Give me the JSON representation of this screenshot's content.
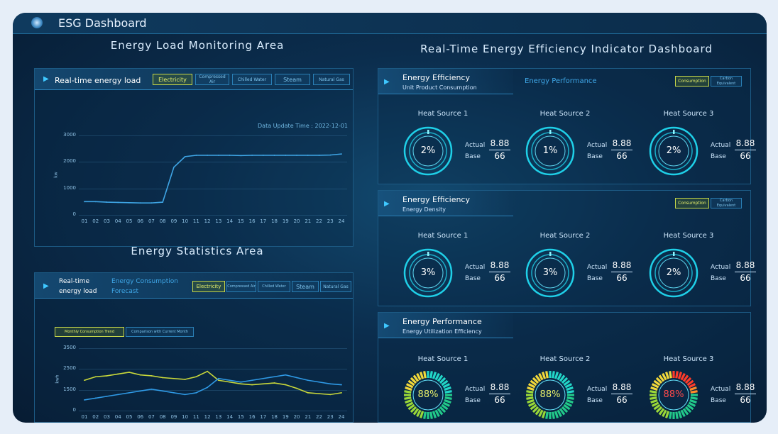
{
  "app": {
    "title": "ESG Dashboard"
  },
  "left": {
    "section1_title": "Energy Load Monitoring Area",
    "load": {
      "title": "Real-time energy load",
      "tabs": [
        "Electricity",
        "Compressed Air",
        "Chilled Water",
        "Steam",
        "Natural Gas"
      ],
      "active_tab": 0,
      "update": "Data Update Time : 2022-12-01",
      "chart": {
        "type": "line",
        "xlabel": "",
        "ylabel": "kw",
        "yticks": [
          "3000",
          "2000",
          "1000",
          "0"
        ],
        "xticks": [
          "01",
          "02",
          "03",
          "04",
          "05",
          "06",
          "07",
          "08",
          "09",
          "10",
          "11",
          "12",
          "13",
          "14",
          "15",
          "16",
          "17",
          "18",
          "19",
          "20",
          "21",
          "22",
          "23",
          "24"
        ]
      }
    },
    "section2_title": "Energy Statistics Area",
    "stats": {
      "title_line1": "Real-time",
      "title_line2": "energy load",
      "link_line1": "Energy Consumption",
      "link_line2": "Forecast",
      "tabs": [
        "Electricity",
        "Compressed Air",
        "Chilled Water",
        "Steam",
        "Natural Gas"
      ],
      "subtabs": [
        "Monthly Consumption Trend",
        "Comparison with Current Month"
      ],
      "chart": {
        "type": "line",
        "ylabel": "kwh",
        "yticks": [
          "3500",
          "2500",
          "1500",
          "0"
        ],
        "xticks": [
          "01",
          "02",
          "03",
          "04",
          "05",
          "06",
          "07",
          "08",
          "09",
          "10",
          "11",
          "12",
          "13",
          "14",
          "15",
          "16",
          "17",
          "18",
          "19",
          "20",
          "21",
          "22",
          "23",
          "24"
        ]
      }
    }
  },
  "right": {
    "title": "Real-Time Energy Efficiency Indicator Dashboard",
    "blocks": [
      {
        "title": "Energy Efficiency",
        "subtitle": "Unit Product Consumption",
        "link": "Energy Performance",
        "tabs": [
          "Consumption",
          "Carbon Equivalent"
        ],
        "sources": [
          {
            "name": "Heat Source 1",
            "value": "2%",
            "actual": "8.88",
            "base": "66"
          },
          {
            "name": "Heat Source 2",
            "value": "1%",
            "actual": "8.88",
            "base": "66"
          },
          {
            "name": "Heat Source 3",
            "value": "2%",
            "actual": "8.88",
            "base": "66"
          }
        ]
      },
      {
        "title": "Energy Efficiency",
        "subtitle": "Energy Density",
        "link": "",
        "tabs": [
          "Consumption",
          "Carbon Equivalent"
        ],
        "sources": [
          {
            "name": "Heat Source 1",
            "value": "3%",
            "actual": "8.88",
            "base": "66"
          },
          {
            "name": "Heat Source 2",
            "value": "3%",
            "actual": "8.88",
            "base": "66"
          },
          {
            "name": "Heat Source 3",
            "value": "2%",
            "actual": "8.88",
            "base": "66"
          }
        ]
      },
      {
        "title": "Energy Performance",
        "subtitle": "Energy Utilization Efficiency",
        "link": "",
        "tabs": [],
        "sources": [
          {
            "name": "Heat Source 1",
            "value": "88%",
            "actual": "8.88",
            "base": "66",
            "color": "#e8f06a"
          },
          {
            "name": "Heat Source 2",
            "value": "88%",
            "actual": "8.88",
            "base": "66",
            "color": "#e8f06a"
          },
          {
            "name": "Heat Source 3",
            "value": "88%",
            "actual": "8.88",
            "base": "66",
            "color": "#ff4a4a"
          }
        ]
      }
    ],
    "actual_label": "Actual",
    "base_label": "Base"
  },
  "chart_data": [
    {
      "type": "line",
      "title": "Real-time energy load",
      "ylabel": "kw",
      "ylim": [
        0,
        3000
      ],
      "x": [
        "01",
        "02",
        "03",
        "04",
        "05",
        "06",
        "07",
        "08",
        "09",
        "10",
        "11",
        "12",
        "13",
        "14",
        "15",
        "16",
        "17",
        "18",
        "19",
        "20",
        "21",
        "22",
        "23",
        "24"
      ],
      "series": [
        {
          "values": [
            500,
            500,
            480,
            470,
            460,
            450,
            450,
            480,
            1800,
            2200,
            2250,
            2250,
            2250,
            2250,
            2240,
            2250,
            2250,
            2250,
            2250,
            2250,
            2250,
            2250,
            2260,
            2300
          ]
        }
      ]
    },
    {
      "type": "line",
      "title": "Monthly Consumption Trend",
      "ylabel": "kwh",
      "ylim": [
        0,
        3500
      ],
      "x": [
        "01",
        "02",
        "03",
        "04",
        "05",
        "06",
        "07",
        "08",
        "09",
        "10",
        "11",
        "12",
        "13",
        "14",
        "15",
        "16",
        "17",
        "18",
        "19",
        "20",
        "21",
        "22",
        "23",
        "24"
      ],
      "series": [
        {
          "values": [
            1700,
            1900,
            1950,
            2050,
            2150,
            2000,
            1950,
            1850,
            1800,
            1750,
            1900,
            2200,
            1700,
            1600,
            1500,
            1450,
            1500,
            1550,
            1450,
            1250,
            1000,
            950,
            900,
            1000
          ],
          "color": "#c9d83a"
        },
        {
          "values": [
            600,
            700,
            800,
            900,
            1000,
            1100,
            1200,
            1100,
            1000,
            900,
            1000,
            1300,
            1800,
            1700,
            1600,
            1700,
            1800,
            1900,
            2000,
            1850,
            1700,
            1600,
            1500,
            1450
          ],
          "color": "#2f9ae6"
        }
      ]
    }
  ]
}
